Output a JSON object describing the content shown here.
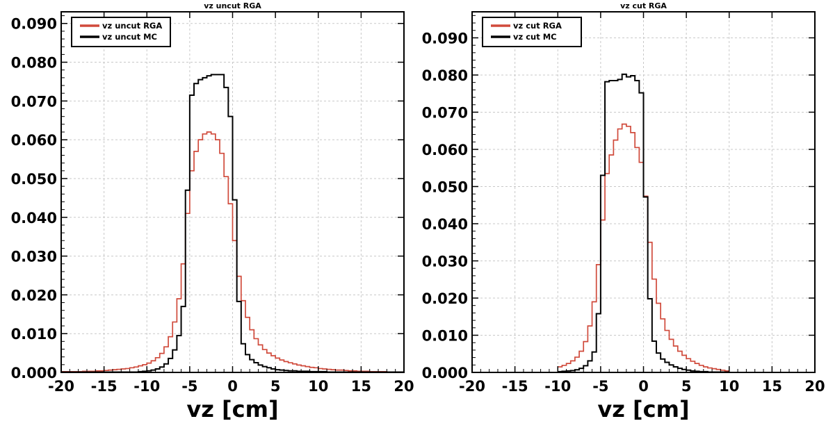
{
  "chart_data": [
    {
      "type": "line",
      "title": "vz uncut RGA",
      "xlabel": "vz [cm]",
      "ylabel": "",
      "xlim": [
        -20,
        20
      ],
      "ylim": [
        0,
        0.093
      ],
      "grid": true,
      "legend_position": "top-left",
      "xticks": [
        -20,
        -15,
        -10,
        -5,
        0,
        5,
        10,
        15,
        20
      ],
      "yticks": [
        0.0,
        0.01,
        0.02,
        0.03,
        0.04,
        0.05,
        0.06,
        0.07,
        0.08,
        0.09
      ],
      "xtick_labels": [
        "-20",
        "-15",
        "-10",
        "-5",
        "0",
        "5",
        "10",
        "15",
        "20"
      ],
      "ytick_labels": [
        "0.000",
        "0.010",
        "0.020",
        "0.030",
        "0.040",
        "0.050",
        "0.060",
        "0.070",
        "0.080",
        "0.090"
      ],
      "bin_edges": [
        -20.0,
        -19.5,
        -19.0,
        -18.5,
        -18.0,
        -17.5,
        -17.0,
        -16.5,
        -16.0,
        -15.5,
        -15.0,
        -14.5,
        -14.0,
        -13.5,
        -13.0,
        -12.5,
        -12.0,
        -11.5,
        -11.0,
        -10.5,
        -10.0,
        -9.5,
        -9.0,
        -8.5,
        -8.0,
        -7.5,
        -7.0,
        -6.5,
        -6.0,
        -5.5,
        -5.0,
        -4.5,
        -4.0,
        -3.5,
        -3.0,
        -2.5,
        -2.0,
        -1.5,
        -1.0,
        -0.5,
        0.0,
        0.5,
        1.0,
        1.5,
        2.0,
        2.5,
        3.0,
        3.5,
        4.0,
        4.5,
        5.0,
        5.5,
        6.0,
        6.5,
        7.0,
        7.5,
        8.0,
        8.5,
        9.0,
        9.5,
        10.0,
        10.5,
        11.0,
        11.5,
        12.0,
        12.5,
        13.0,
        13.5,
        14.0,
        14.5,
        15.0,
        15.5,
        16.0,
        16.5,
        17.0,
        17.5,
        18.0,
        18.5,
        19.0,
        19.5,
        20.0
      ],
      "series": [
        {
          "name": "vz uncut RGA",
          "color": "#d04a3b",
          "values": [
            0.0002,
            0.0002,
            0.0002,
            0.0002,
            0.0002,
            0.0003,
            0.0003,
            0.0003,
            0.0004,
            0.0004,
            0.0005,
            0.0006,
            0.0007,
            0.0008,
            0.0009,
            0.001,
            0.0012,
            0.0014,
            0.0017,
            0.002,
            0.0024,
            0.003,
            0.0038,
            0.0049,
            0.0066,
            0.0092,
            0.013,
            0.019,
            0.028,
            0.041,
            0.052,
            0.057,
            0.06,
            0.0615,
            0.062,
            0.0615,
            0.06,
            0.0565,
            0.0505,
            0.0435,
            0.034,
            0.0248,
            0.0185,
            0.0142,
            0.011,
            0.0087,
            0.0071,
            0.0059,
            0.005,
            0.0043,
            0.0037,
            0.0032,
            0.0028,
            0.0025,
            0.0022,
            0.0019,
            0.0017,
            0.0015,
            0.0013,
            0.0012,
            0.001,
            0.0009,
            0.0008,
            0.0007,
            0.0006,
            0.0006,
            0.0005,
            0.0004,
            0.0004,
            0.0003,
            0.0003,
            0.0003,
            0.0002,
            0.0002,
            0.0002,
            0.0002,
            0.0001,
            0.0001,
            0.0001,
            0.0001
          ]
        },
        {
          "name": "vz uncut MC",
          "color": "#000000",
          "values": [
            0.0001,
            0.0001,
            0.0001,
            0.0001,
            0.0001,
            0.0001,
            0.0001,
            0.0001,
            0.0001,
            0.0001,
            0.0001,
            0.0001,
            0.0001,
            0.0001,
            0.0001,
            0.0001,
            0.0001,
            0.0001,
            0.0002,
            0.0003,
            0.0004,
            0.0006,
            0.0009,
            0.0014,
            0.0022,
            0.0036,
            0.0058,
            0.0095,
            0.017,
            0.047,
            0.0715,
            0.0745,
            0.0755,
            0.076,
            0.0765,
            0.0768,
            0.0768,
            0.0768,
            0.0735,
            0.066,
            0.0445,
            0.0183,
            0.0074,
            0.0046,
            0.0033,
            0.0025,
            0.0019,
            0.0015,
            0.0012,
            0.0009,
            0.0007,
            0.0006,
            0.0005,
            0.0004,
            0.0004,
            0.0003,
            0.0003,
            0.0003,
            0.0002,
            0.0002,
            0.0002,
            0.0002,
            0.0001,
            0.0001,
            0.0001,
            0.0001,
            0.0001,
            0.0001,
            0.0001,
            0.0001,
            0.0001,
            0.0001,
            0.0001,
            0.0001,
            0.0001,
            0.0001,
            0.0001,
            0.0001,
            0.0001,
            0.0001
          ]
        }
      ]
    },
    {
      "type": "line",
      "title": "vz cut RGA",
      "xlabel": "vz [cm]",
      "ylabel": "",
      "xlim": [
        -20,
        20
      ],
      "ylim": [
        0,
        0.097
      ],
      "grid": true,
      "legend_position": "top-left",
      "xticks": [
        -20,
        -15,
        -10,
        -5,
        0,
        5,
        10,
        15,
        20
      ],
      "yticks": [
        0.0,
        0.01,
        0.02,
        0.03,
        0.04,
        0.05,
        0.06,
        0.07,
        0.08,
        0.09
      ],
      "xtick_labels": [
        "-20",
        "-15",
        "-10",
        "-5",
        "0",
        "5",
        "10",
        "15",
        "20"
      ],
      "ytick_labels": [
        "0.000",
        "0.010",
        "0.020",
        "0.030",
        "0.040",
        "0.050",
        "0.060",
        "0.070",
        "0.080",
        "0.090"
      ],
      "bin_edges": [
        -10.0,
        -9.5,
        -9.0,
        -8.5,
        -8.0,
        -7.5,
        -7.0,
        -6.5,
        -6.0,
        -5.5,
        -5.0,
        -4.5,
        -4.0,
        -3.5,
        -3.0,
        -2.5,
        -2.0,
        -1.5,
        -1.0,
        -0.5,
        0.0,
        0.5,
        1.0,
        1.5,
        2.0,
        2.5,
        3.0,
        3.5,
        4.0,
        4.5,
        5.0,
        5.5,
        6.0,
        6.5,
        7.0,
        7.5,
        8.0,
        8.5,
        9.0,
        9.5,
        10.0
      ],
      "series": [
        {
          "name": "vz cut RGA",
          "color": "#d04a3b",
          "values": [
            0.0015,
            0.0019,
            0.0024,
            0.0031,
            0.0041,
            0.0057,
            0.0083,
            0.0125,
            0.019,
            0.029,
            0.041,
            0.0535,
            0.0585,
            0.0625,
            0.0655,
            0.0668,
            0.0662,
            0.0645,
            0.0605,
            0.0565,
            0.0474,
            0.035,
            0.0251,
            0.0186,
            0.0144,
            0.0113,
            0.0089,
            0.0071,
            0.0057,
            0.0046,
            0.0037,
            0.003,
            0.0024,
            0.0019,
            0.0015,
            0.0012,
            0.001,
            0.0008,
            0.0006,
            0.0004
          ]
        },
        {
          "name": "vz cut MC",
          "color": "#000000",
          "values": [
            0.0002,
            0.0003,
            0.0004,
            0.0005,
            0.0007,
            0.0011,
            0.0018,
            0.0031,
            0.0055,
            0.0158,
            0.053,
            0.0782,
            0.0785,
            0.0785,
            0.0788,
            0.0802,
            0.0795,
            0.0798,
            0.0785,
            0.0752,
            0.0472,
            0.0198,
            0.0084,
            0.0052,
            0.0036,
            0.0027,
            0.002,
            0.0015,
            0.0011,
            0.0008,
            0.0006,
            0.0004,
            0.0003,
            0.0002,
            0.0002,
            0.0001,
            0.0001,
            0.0001,
            0.0001,
            0.0001
          ]
        }
      ]
    }
  ]
}
